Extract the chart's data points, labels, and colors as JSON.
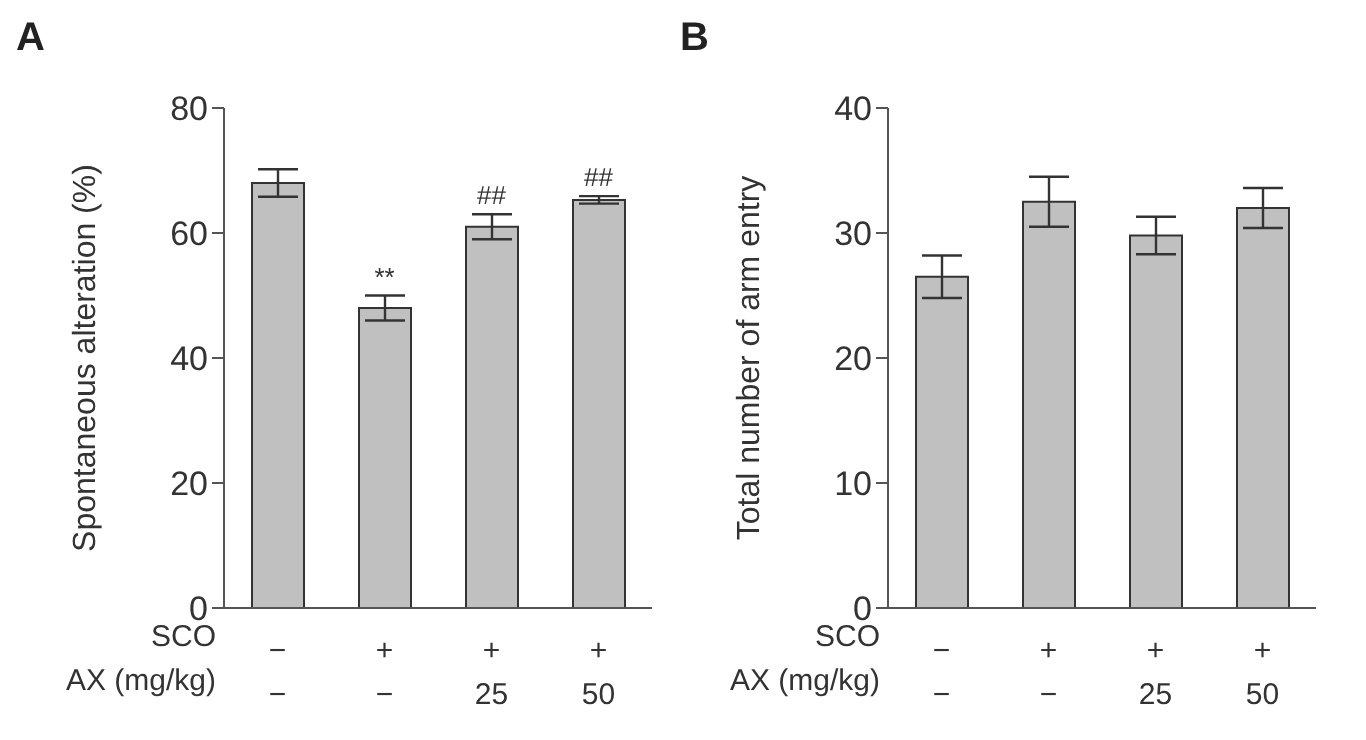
{
  "chart_data": [
    {
      "type": "bar",
      "title": "A",
      "ylabel": "Spontaneous alteration (%)",
      "categories": [
        "−\n−",
        "+\n−",
        "+\n25",
        "+\n50"
      ],
      "values": [
        68,
        48,
        61,
        65.3
      ],
      "errors": [
        2.2,
        2,
        2,
        0.6
      ],
      "color": "#c0c0c0",
      "ylim": [
        0,
        80
      ],
      "yticks": [
        0,
        20,
        40,
        60,
        80
      ],
      "grid": false,
      "legend": false,
      "annotations": [
        "SCO",
        "AX (mg/kg)",
        {
          "text": "**",
          "x": "+\n−",
          "y": 50
        },
        {
          "text": "##",
          "x": "+\n25",
          "y": 63
        },
        {
          "text": "##",
          "x": "+\n50",
          "y": 66
        }
      ]
    },
    {
      "type": "bar",
      "title": "B",
      "ylabel": "Total number of arm entry",
      "categories": [
        "−\n−",
        "+\n−",
        "+\n25",
        "+\n50"
      ],
      "values": [
        26.5,
        32.5,
        29.8,
        32
      ],
      "errors": [
        1.7,
        2,
        1.5,
        1.6
      ],
      "color": "#c0c0c0",
      "ylim": [
        0,
        40
      ],
      "yticks": [
        0,
        10,
        20,
        30,
        40
      ],
      "grid": false,
      "legend": false,
      "annotations": [
        "SCO",
        "AX (mg/kg)"
      ]
    }
  ]
}
